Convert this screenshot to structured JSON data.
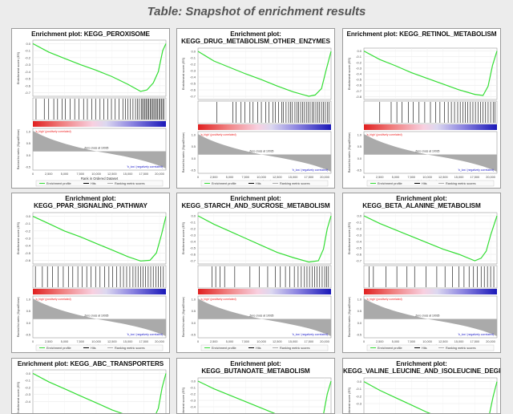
{
  "page": {
    "title": "Table: Snapshot of enrichment results"
  },
  "common": {
    "es_ylabel": "Enrichment score (ES)",
    "rank_ylabel": "Ranked list metric (Signal2Noise)",
    "xlabel": "Rank in Ordered Dataset",
    "xticks": [
      "0",
      "2,500",
      "5,000",
      "7,500",
      "10,000",
      "12,500",
      "15,000",
      "17,500",
      "20,000"
    ],
    "pos_label": "'a_high' (positively correlated)",
    "neg_label": "'b_low' (negatively correlated)",
    "zero_label": "Zero cross at 10035",
    "legend": [
      "Enrichment profile",
      "Hits",
      "Ranking metric scores"
    ],
    "colors": {
      "profile": "#33dd33",
      "hits": "#000000",
      "metric": "#aaaaaa",
      "pos": "#ee2222",
      "neg": "#2222cc"
    }
  },
  "chart_data": [
    {
      "type": "line",
      "title": "Enrichment plot: KEGG_PEROXISOME",
      "xlim": [
        0,
        21000
      ],
      "ylim": [
        -0.75,
        0.05
      ],
      "yticks": [
        "0.0",
        "-0.1",
        "-0.2",
        "-0.3",
        "-0.4",
        "-0.5",
        "-0.6",
        "-0.7"
      ],
      "x": [
        0,
        2500,
        5000,
        7500,
        10000,
        12500,
        15000,
        17000,
        18000,
        19000,
        19800,
        20500,
        21000
      ],
      "series": [
        {
          "values": [
            0,
            -0.12,
            -0.21,
            -0.3,
            -0.38,
            -0.47,
            -0.58,
            -0.68,
            -0.66,
            -0.56,
            -0.4,
            -0.1,
            0
          ]
        }
      ],
      "hits": [
        500,
        1800,
        2500,
        3300,
        3900,
        4600,
        5100,
        5900,
        6600,
        7300,
        8000,
        8600,
        9300,
        9900,
        10600,
        11200,
        11800,
        12400,
        13000,
        13600,
        14200,
        14600,
        15000,
        15400,
        15800,
        16200,
        16500,
        16800,
        17100,
        17300,
        17500,
        17700,
        17900,
        18100,
        18300,
        18500,
        18700,
        18900,
        19100,
        19300,
        19500,
        19700,
        19900,
        20100,
        20300,
        20500,
        20700
      ]
    },
    {
      "type": "line",
      "title": "Enrichment plot: KEGG_DRUG_METABOLISM_OTHER_ENZYMES",
      "xlim": [
        0,
        21000
      ],
      "ylim": [
        -0.75,
        0.05
      ],
      "yticks": [
        "0.0",
        "-0.1",
        "-0.2",
        "-0.3",
        "-0.4",
        "-0.5",
        "-0.6",
        "-0.7"
      ],
      "x": [
        0,
        2500,
        5000,
        7500,
        10000,
        12500,
        15000,
        17500,
        18500,
        19500,
        20200,
        21000
      ],
      "series": [
        {
          "values": [
            0,
            -0.15,
            -0.25,
            -0.35,
            -0.44,
            -0.54,
            -0.63,
            -0.7,
            -0.68,
            -0.58,
            -0.3,
            0
          ]
        }
      ],
      "hits": [
        3000,
        5500,
        6000,
        6800,
        7400,
        8200,
        8700,
        9400,
        10000,
        10700,
        11200,
        11800,
        12200,
        12700,
        13200,
        13500,
        13900,
        14300,
        14600,
        14900,
        15300,
        15600,
        15900,
        16200,
        16500,
        16800,
        17100,
        17400,
        17700,
        18000,
        18300,
        18600,
        18900,
        19200,
        19500,
        19800,
        20100,
        20400,
        20700
      ]
    },
    {
      "type": "line",
      "title": "Enrichment plot: KEGG_RETINOL_METABOLISM",
      "xlim": [
        0,
        21000
      ],
      "ylim": [
        -0.85,
        0.05
      ],
      "yticks": [
        "0.0",
        "-0.1",
        "-0.2",
        "-0.3",
        "-0.4",
        "-0.5",
        "-0.6",
        "-0.7",
        "-0.8"
      ],
      "x": [
        0,
        2500,
        5000,
        7500,
        10000,
        12500,
        15000,
        17500,
        18800,
        19600,
        20300,
        21000
      ],
      "series": [
        {
          "values": [
            0,
            -0.15,
            -0.26,
            -0.38,
            -0.48,
            -0.58,
            -0.68,
            -0.76,
            -0.78,
            -0.62,
            -0.25,
            0
          ]
        }
      ],
      "hits": [
        2500,
        4300,
        5200,
        6000,
        7000,
        7800,
        8700,
        9600,
        10500,
        11300,
        12000,
        12700,
        13300,
        13800,
        14300,
        14800,
        15200,
        15600,
        16000,
        16400,
        16800,
        17200,
        17600,
        18000,
        18400,
        18800,
        19200,
        19600,
        20000,
        20400,
        20700
      ]
    },
    {
      "type": "line",
      "title": "Enrichment plot: KEGG_PPAR_SIGNALING_PATHWAY",
      "xlim": [
        0,
        21000
      ],
      "ylim": [
        -0.65,
        0.05
      ],
      "yticks": [
        "0.0",
        "-0.1",
        "-0.2",
        "-0.3",
        "-0.4",
        "-0.5",
        "-0.6"
      ],
      "x": [
        0,
        2500,
        5000,
        7500,
        10000,
        12500,
        15000,
        17000,
        18500,
        19500,
        20300,
        21000
      ],
      "series": [
        {
          "values": [
            0,
            -0.1,
            -0.2,
            -0.28,
            -0.37,
            -0.46,
            -0.55,
            -0.61,
            -0.6,
            -0.5,
            -0.25,
            0
          ]
        }
      ],
      "hits": [
        400,
        1500,
        2300,
        3100,
        4000,
        4800,
        5600,
        6300,
        7100,
        7800,
        8500,
        9200,
        9900,
        10600,
        11300,
        12000,
        12600,
        13200,
        13800,
        14300,
        14800,
        15300,
        15800,
        16200,
        16600,
        17000,
        17400,
        17800,
        18200,
        18600,
        19000,
        19400,
        19800,
        20200,
        20600
      ]
    },
    {
      "type": "line",
      "title": "Enrichment plot: KEGG_STARCH_AND_SUCROSE_METABOLISM",
      "xlim": [
        0,
        21000
      ],
      "ylim": [
        -0.75,
        0.05
      ],
      "yticks": [
        "0.0",
        "-0.1",
        "-0.2",
        "-0.3",
        "-0.4",
        "-0.5",
        "-0.6",
        "-0.7"
      ],
      "x": [
        0,
        2500,
        5000,
        7500,
        10000,
        12500,
        15000,
        17500,
        19000,
        19800,
        20400,
        21000
      ],
      "series": [
        {
          "values": [
            0,
            -0.13,
            -0.24,
            -0.35,
            -0.46,
            -0.57,
            -0.65,
            -0.72,
            -0.7,
            -0.52,
            -0.2,
            0
          ]
        }
      ],
      "hits": [
        2200,
        2800,
        3500,
        4200,
        5800,
        8200,
        9700,
        11000,
        12200,
        13000,
        13800,
        14500,
        15200,
        15800,
        16300,
        16800,
        17200,
        17600,
        18000,
        18400,
        18800,
        19200,
        19600,
        20000,
        20300,
        20600
      ]
    },
    {
      "type": "line",
      "title": "Enrichment plot: KEGG_BETA_ALANINE_METABOLISM",
      "xlim": [
        0,
        21000
      ],
      "ylim": [
        -0.75,
        0.05
      ],
      "yticks": [
        "0.0",
        "-0.1",
        "-0.2",
        "-0.3",
        "-0.4",
        "-0.5",
        "-0.6",
        "-0.7"
      ],
      "x": [
        0,
        2500,
        5000,
        7500,
        10000,
        12500,
        15000,
        17500,
        18500,
        19300,
        20000,
        21000
      ],
      "series": [
        {
          "values": [
            0,
            -0.12,
            -0.22,
            -0.32,
            -0.42,
            -0.52,
            -0.6,
            -0.7,
            -0.66,
            -0.55,
            -0.3,
            0
          ]
        }
      ],
      "hits": [
        800,
        1500,
        3500,
        5200,
        6800,
        8000,
        9800,
        11500,
        12800,
        14000,
        15000,
        15800,
        16600,
        17300,
        17900,
        18500,
        19000,
        19500,
        20000,
        20500
      ]
    },
    {
      "type": "line",
      "title": "Enrichment plot: KEGG_ABC_TRANSPORTERS",
      "xlim": [
        0,
        21000
      ],
      "ylim": [
        -0.75,
        0.05
      ],
      "yticks": [
        "0.0",
        "-0.1",
        "-0.2",
        "-0.3",
        "-0.4"
      ],
      "x": [
        0,
        2500,
        5000,
        7500,
        10000,
        12500,
        15000,
        17500,
        19000,
        19800,
        20400,
        21000
      ],
      "series": [
        {
          "values": [
            0,
            -0.12,
            -0.22,
            -0.32,
            -0.42,
            -0.52,
            -0.6,
            -0.68,
            -0.66,
            -0.5,
            -0.2,
            0
          ]
        }
      ],
      "hits": []
    },
    {
      "type": "line",
      "title": "Enrichment plot: KEGG_BUTANOATE_METABOLISM",
      "xlim": [
        0,
        21000
      ],
      "ylim": [
        -0.75,
        0.05
      ],
      "yticks": [
        "0.0",
        "-0.1",
        "-0.2",
        "-0.3",
        "-0.4"
      ],
      "x": [
        0,
        2500,
        5000,
        7500,
        10000,
        12500,
        15000,
        17500,
        19000,
        19800,
        20400,
        21000
      ],
      "series": [
        {
          "values": [
            0,
            -0.12,
            -0.22,
            -0.32,
            -0.42,
            -0.52,
            -0.6,
            -0.68,
            -0.66,
            -0.52,
            -0.2,
            0
          ]
        }
      ],
      "hits": []
    },
    {
      "type": "line",
      "title": "Enrichment plot: KEGG_VALINE_LEUCINE_AND_ISOLEUCINE_DEGRADATION",
      "xlim": [
        0,
        21000
      ],
      "ylim": [
        -0.65,
        0.05
      ],
      "yticks": [
        "0.0",
        "-0.1",
        "-0.2",
        "-0.3"
      ],
      "x": [
        0,
        2500,
        5000,
        7500,
        10000,
        12500,
        15000,
        17500,
        19000,
        19800,
        20400,
        21000
      ],
      "series": [
        {
          "values": [
            0,
            -0.12,
            -0.22,
            -0.32,
            -0.42,
            -0.5,
            -0.56,
            -0.6,
            -0.58,
            -0.45,
            -0.2,
            0
          ]
        }
      ],
      "hits": []
    }
  ]
}
